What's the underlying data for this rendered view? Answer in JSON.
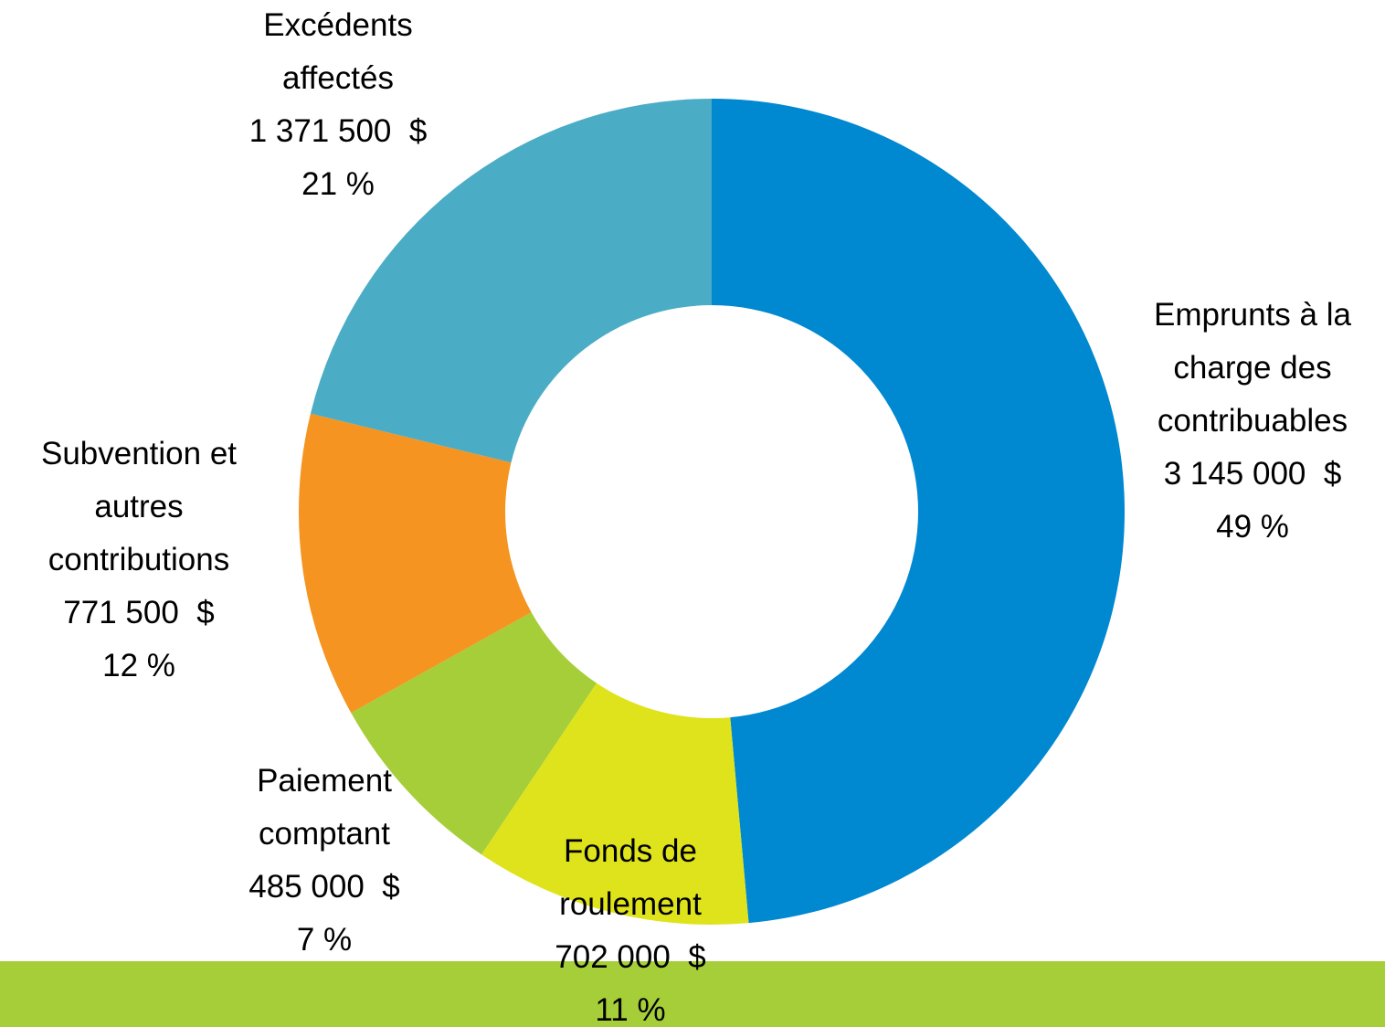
{
  "chart_data": {
    "type": "donut",
    "categories": [
      "Emprunts à la charge des contribuables",
      "Fonds de roulement",
      "Paiement comptant",
      "Subvention et autres contributions",
      "Excédents affectés"
    ],
    "values": [
      3145000,
      702000,
      485000,
      771500,
      1371500
    ],
    "value_labels": [
      "3 145 000  $",
      "702 000  $",
      "485 000  $",
      "771 500  $",
      "1 371 500  $"
    ],
    "percent_labels": [
      "49 %",
      "11 %",
      "7 %",
      "12 %",
      "21 %"
    ],
    "colors": [
      "#0088d1",
      "#dfe31b",
      "#a6ce39",
      "#f59420",
      "#4bacc6"
    ]
  }
}
